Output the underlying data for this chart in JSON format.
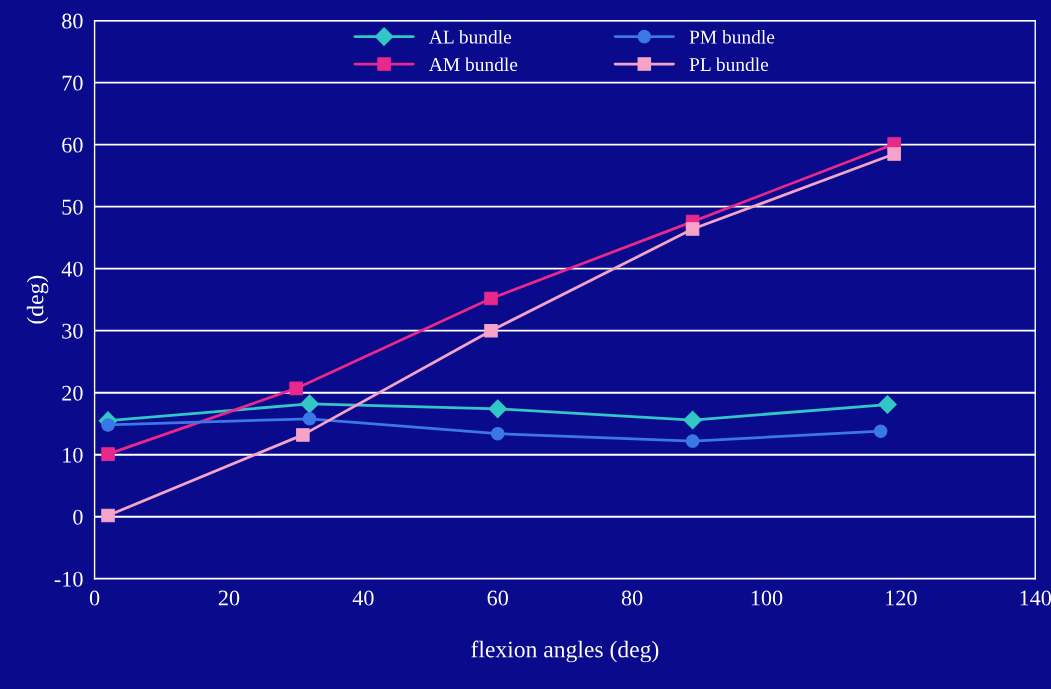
{
  "chart_data": {
    "type": "line",
    "xlabel": "flexion angles (deg)",
    "ylabel": "(deg)",
    "xlim": [
      0,
      140
    ],
    "xticks": [
      0,
      20,
      40,
      60,
      80,
      100,
      120,
      140
    ],
    "ylim": [
      -10,
      80
    ],
    "yticks": [
      -10,
      0,
      10,
      20,
      30,
      40,
      50,
      60,
      70,
      80
    ],
    "grid": "y",
    "legend": "top",
    "series": [
      {
        "name": "AL bundle",
        "color": "#33c6c6",
        "marker": "diamond",
        "x": [
          2,
          32,
          60,
          89,
          118
        ],
        "values": [
          15.5,
          18.2,
          17.4,
          15.6,
          18.1
        ]
      },
      {
        "name": "AM bundle",
        "color": "#e8288a",
        "marker": "square",
        "x": [
          2,
          30,
          59,
          89,
          119
        ],
        "values": [
          10.1,
          20.7,
          35.2,
          47.6,
          60.1
        ]
      },
      {
        "name": "PM bundle",
        "color": "#3a78e8",
        "marker": "circle",
        "x": [
          2,
          32,
          60,
          89,
          117
        ],
        "values": [
          14.8,
          15.8,
          13.4,
          12.2,
          13.8
        ]
      },
      {
        "name": "PL bundle",
        "color": "#f5a3c8",
        "marker": "square",
        "x": [
          2,
          31,
          59,
          89,
          119
        ],
        "values": [
          0.2,
          13.2,
          30,
          46.4,
          58.5
        ]
      }
    ]
  }
}
